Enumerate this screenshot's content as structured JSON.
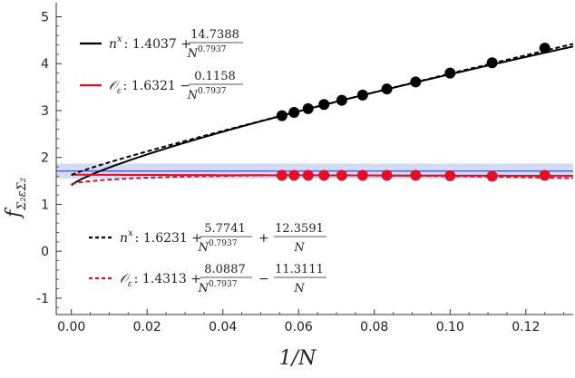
{
  "chart_data": {
    "type": "scatter",
    "xlabel": "1/N",
    "ylabel": "f_{Σ₂εΣ₂}",
    "xlim": [
      -0.004,
      0.1325
    ],
    "ylim": [
      -1.35,
      5.3
    ],
    "x_ticks": [
      "0.00",
      "0.02",
      "0.04",
      "0.06",
      "0.08",
      "0.10",
      "0.12"
    ],
    "x_tick_values": [
      0,
      0.02,
      0.04,
      0.06,
      0.08,
      0.1,
      0.12
    ],
    "y_ticks": [
      "-1",
      "0",
      "1",
      "2",
      "3",
      "4",
      "5"
    ],
    "y_tick_values": [
      -1,
      0,
      1,
      2,
      3,
      4,
      5
    ],
    "reference": {
      "value": 1.71,
      "band": [
        1.55,
        1.87
      ],
      "color": "#2f45c8",
      "band_color": "#c9d3f3"
    },
    "series": [
      {
        "legend": "nˣ fit (solid)",
        "style": "solid",
        "color": "#000000",
        "formula": {
          "a": 1.4037,
          "b": 14.7388,
          "c": 0,
          "p": 0.7937
        },
        "points_x": [
          0.0556,
          0.0588,
          0.0625,
          0.0667,
          0.0714,
          0.0769,
          0.0833,
          0.0909,
          0.1,
          0.1111,
          0.125
        ],
        "points_y": [
          2.89,
          2.96,
          3.04,
          3.13,
          3.22,
          3.33,
          3.46,
          3.61,
          3.8,
          4.02,
          4.33
        ]
      },
      {
        "legend": "O_ε fit (solid)",
        "style": "solid",
        "color": "#e0102a",
        "formula": {
          "a": 1.6321,
          "b": -0.1158,
          "c": 0,
          "p": 0.7937
        },
        "points_x": [
          0.0556,
          0.0588,
          0.0625,
          0.0667,
          0.0714,
          0.0769,
          0.0833,
          0.0909,
          0.1,
          0.1111,
          0.125
        ],
        "points_y": [
          1.62,
          1.62,
          1.62,
          1.62,
          1.62,
          1.62,
          1.62,
          1.62,
          1.61,
          1.6,
          1.62
        ]
      },
      {
        "legend": "nˣ fit (dashed)",
        "style": "dashed",
        "color": "#000000",
        "formula": {
          "a": 1.6231,
          "b": 5.7741,
          "c": 12.3591,
          "p": 0.7937
        }
      },
      {
        "legend": "O_ε fit (dashed)",
        "style": "dashed",
        "color": "#e0102a",
        "formula": {
          "a": 1.4313,
          "b": 8.0887,
          "c": -11.3111,
          "p": 0.7937
        }
      }
    ]
  },
  "legend_top": [
    {
      "symbol": "n",
      "sup": "x",
      "const": ": 1.4037 +",
      "num": "14.7388",
      "den_base": "N",
      "den_exp": "0.7937"
    },
    {
      "symbol": "𝒪",
      "sub": "ε",
      "const": ": 1.6321 −",
      "num": "0.1158",
      "den_base": "N",
      "den_exp": "0.7937"
    }
  ],
  "legend_bottom": [
    {
      "symbol": "n",
      "sup": "x",
      "const": ": 1.6231 +",
      "num": "5.7741",
      "den_base": "N",
      "den_exp": "0.7937",
      "op2": "+",
      "num2": "12.3591",
      "den2": "N"
    },
    {
      "symbol": "𝒪",
      "sub": "ε",
      "const": ": 1.4313 +",
      "num": "8.0887",
      "den_base": "N",
      "den_exp": "0.7937",
      "op2": "−",
      "num2": "11.3111",
      "den2": "N"
    }
  ],
  "labels": {
    "xlabel": "1/N",
    "ylabel_main": "f",
    "ylabel_sub": "Σ₂εΣ₂"
  }
}
